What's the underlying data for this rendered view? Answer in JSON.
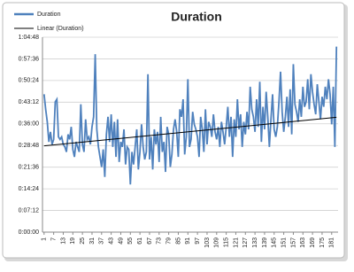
{
  "chart_data": {
    "type": "line",
    "title": "Duration",
    "x": [
      1,
      2,
      3,
      4,
      5,
      6,
      7,
      8,
      9,
      10,
      11,
      12,
      13,
      14,
      15,
      16,
      17,
      18,
      19,
      20,
      21,
      22,
      23,
      24,
      25,
      26,
      27,
      28,
      29,
      30,
      31,
      32,
      33,
      34,
      35,
      36,
      37,
      38,
      39,
      40,
      41,
      42,
      43,
      44,
      45,
      46,
      47,
      48,
      49,
      50,
      51,
      52,
      53,
      54,
      55,
      56,
      57,
      58,
      59,
      60,
      61,
      62,
      63,
      64,
      65,
      66,
      67,
      68,
      69,
      70,
      71,
      72,
      73,
      74,
      75,
      76,
      77,
      78,
      79,
      80,
      81,
      82,
      83,
      84,
      85,
      86,
      87,
      88,
      89,
      90,
      91,
      92,
      93,
      94,
      95,
      96,
      97,
      98,
      99,
      100,
      101,
      102,
      103,
      104,
      105,
      106,
      107,
      108,
      109,
      110,
      111,
      112,
      113,
      114,
      115,
      116,
      117,
      118,
      119,
      120,
      121,
      122,
      123,
      124,
      125,
      126,
      127,
      128,
      129,
      130,
      131,
      132,
      133,
      134,
      135,
      136,
      137,
      138,
      139,
      140,
      141,
      142,
      143,
      144,
      145,
      146,
      147,
      148,
      149,
      150,
      151,
      152,
      153,
      154,
      155,
      156,
      157,
      158,
      159,
      160,
      161,
      162,
      163,
      164,
      165,
      166,
      167,
      168,
      169,
      170,
      171,
      172,
      173,
      174,
      175,
      176,
      177,
      178,
      179,
      180,
      181,
      182,
      183,
      184
    ],
    "series": [
      {
        "name": "Duration",
        "color": "#4f81bd",
        "values": [
          2750,
          2450,
          2200,
          1800,
          2000,
          1750,
          1850,
          2600,
          2650,
          1900,
          1850,
          1900,
          1750,
          1700,
          1600,
          1950,
          1850,
          2100,
          1650,
          1500,
          1800,
          1700,
          1600,
          2550,
          1750,
          1600,
          2250,
          1850,
          1900,
          1750,
          2100,
          2300,
          3550,
          2050,
          1700,
          1500,
          1300,
          1650,
          1100,
          1950,
          2300,
          1800,
          2350,
          1700,
          2200,
          1500,
          2250,
          1400,
          1800,
          1700,
          2050,
          1350,
          1700,
          1650,
          950,
          1600,
          1350,
          1700,
          2050,
          1250,
          1600,
          2150,
          1700,
          1450,
          1600,
          3150,
          1450,
          1900,
          1250,
          2050,
          1750,
          2000,
          1400,
          2300,
          1600,
          1800,
          1200,
          2100,
          1950,
          1300,
          1550,
          2050,
          2250,
          2000,
          1500,
          2450,
          2300,
          2650,
          1550,
          1900,
          3050,
          1700,
          1850,
          2400,
          2150,
          2050,
          1900,
          1500,
          2300,
          2050,
          1600,
          2450,
          1750,
          2200,
          2100,
          1900,
          2350,
          2000,
          1850,
          2100,
          1700,
          2200,
          2000,
          1750,
          2100,
          2500,
          1900,
          2300,
          1500,
          2250,
          1900,
          2650,
          2050,
          2350,
          1700,
          2200,
          1950,
          2400,
          2050,
          2900,
          2450,
          2300,
          2000,
          2650,
          2100,
          3000,
          1800,
          2500,
          2050,
          2800,
          2300,
          1700,
          2250,
          2750,
          2050,
          1900,
          2100,
          2600,
          3200,
          2400,
          2000,
          2300,
          2700,
          2100,
          2850,
          1950,
          3350,
          2550,
          2400,
          2200,
          2650,
          2300,
          2900,
          2500,
          2600,
          3050,
          2450,
          3150,
          2800,
          2550,
          2350,
          2950,
          2600,
          2250,
          2700,
          2500,
          2900,
          2650,
          3050,
          2750,
          2150,
          2900,
          1700,
          3700
        ]
      },
      {
        "name": "Linear (Duration)",
        "color": "#000000",
        "x": [
          1,
          184
        ],
        "values": [
          1720,
          2290
        ]
      }
    ],
    "xlim": [
      0,
      185
    ],
    "xticks": [
      1,
      7,
      13,
      19,
      25,
      31,
      37,
      43,
      49,
      55,
      61,
      67,
      73,
      79,
      85,
      91,
      97,
      103,
      109,
      115,
      121,
      127,
      133,
      139,
      145,
      151,
      157,
      163,
      169,
      175,
      181
    ],
    "ylim": [
      0,
      3888
    ],
    "yticks": [
      {
        "value": 0,
        "label": "0:00:00"
      },
      {
        "value": 432,
        "label": "0:07:12"
      },
      {
        "value": 864,
        "label": "0:14:24"
      },
      {
        "value": 1296,
        "label": "0:21:36"
      },
      {
        "value": 1728,
        "label": "0:28:48"
      },
      {
        "value": 2160,
        "label": "0:36:00"
      },
      {
        "value": 2592,
        "label": "0:43:12"
      },
      {
        "value": 3024,
        "label": "0:50:24"
      },
      {
        "value": 3456,
        "label": "0:57:36"
      },
      {
        "value": 3888,
        "label": "1:04:48"
      }
    ],
    "grid": true,
    "legend": "top-left"
  }
}
